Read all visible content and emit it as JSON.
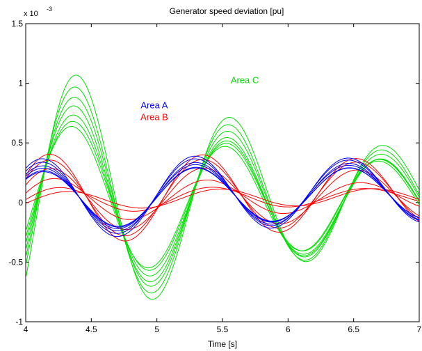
{
  "chart_data": {
    "type": "line",
    "title": "Generator speed deviation [pu]",
    "xlabel": "Time [s]",
    "ylabel": "",
    "xlim": [
      4,
      7
    ],
    "ylim": [
      -1,
      1.5
    ],
    "y_exponent_label": "x 10^-3",
    "y_multiplier_base": "x 10",
    "y_multiplier_exp": "-3",
    "xticks": [
      4,
      4.5,
      5,
      5.5,
      6,
      6.5,
      7
    ],
    "xtick_labels": [
      "4",
      "4.5",
      "5",
      "5.5",
      "6",
      "6.5",
      "7"
    ],
    "yticks": [
      -1,
      -0.5,
      0,
      0.5,
      1,
      1.5
    ],
    "ytick_labels": [
      "-1",
      "-0.5",
      "0",
      "0.5",
      "1",
      "1.5"
    ],
    "grid": false,
    "annotations": [
      {
        "text": "Area C",
        "x": 5.67,
        "y": 1.0,
        "color": "#00e000"
      },
      {
        "text": "Area A",
        "x": 4.98,
        "y": 0.79,
        "color": "#0000ff"
      },
      {
        "text": "Area B",
        "x": 4.98,
        "y": 0.69,
        "color": "#ff0000"
      }
    ],
    "groups": [
      {
        "name": "Area C",
        "color": "#00e000",
        "series": [
          {
            "x0": 4.0,
            "y0": -0.1,
            "amp": 1.22,
            "decay": 0.38,
            "period": 1.17,
            "phase": -0.55,
            "offset": 0.05
          },
          {
            "x0": 4.0,
            "y0": -0.3,
            "amp": 1.1,
            "decay": 0.36,
            "period": 1.17,
            "phase": -0.5,
            "offset": 0.03
          },
          {
            "x0": 4.0,
            "y0": -0.5,
            "amp": 1.0,
            "decay": 0.35,
            "period": 1.17,
            "phase": -0.48,
            "offset": 0.02
          },
          {
            "x0": 4.0,
            "y0": -0.65,
            "amp": 0.92,
            "decay": 0.34,
            "period": 1.17,
            "phase": -0.45,
            "offset": 0.0
          },
          {
            "x0": 4.0,
            "y0": -0.75,
            "amp": 0.82,
            "decay": 0.3,
            "period": 1.17,
            "phase": -0.43,
            "offset": 0.0
          },
          {
            "x0": 4.0,
            "y0": -0.6,
            "amp": 0.75,
            "decay": 0.28,
            "period": 1.17,
            "phase": -0.4,
            "offset": 0.01
          },
          {
            "x0": 4.0,
            "y0": -0.4,
            "amp": 0.7,
            "decay": 0.26,
            "period": 1.17,
            "phase": -0.35,
            "offset": 0.0
          }
        ]
      },
      {
        "name": "Area A",
        "color": "#0000ff",
        "series": [
          {
            "amp": 0.36,
            "decay": 0.1,
            "period": 1.17,
            "phase": 0.92,
            "offset": 0.1
          },
          {
            "amp": 0.33,
            "decay": 0.09,
            "period": 1.17,
            "phase": 0.92,
            "offset": 0.1
          },
          {
            "amp": 0.3,
            "decay": 0.08,
            "period": 1.17,
            "phase": 0.9,
            "offset": 0.09
          },
          {
            "amp": 0.28,
            "decay": 0.08,
            "period": 1.17,
            "phase": 0.9,
            "offset": 0.09
          },
          {
            "amp": 0.26,
            "decay": 0.07,
            "period": 1.17,
            "phase": 0.88,
            "offset": 0.08
          },
          {
            "amp": 0.25,
            "decay": 0.06,
            "period": 1.17,
            "phase": 0.88,
            "offset": 0.08
          }
        ]
      },
      {
        "name": "Area B",
        "color": "#ff0000",
        "series": [
          {
            "amp": 0.4,
            "decay": 0.12,
            "period": 1.17,
            "phase": 0.6,
            "offset": 0.08
          },
          {
            "amp": 0.35,
            "decay": 0.11,
            "period": 1.17,
            "phase": 0.6,
            "offset": 0.08
          },
          {
            "amp": 0.28,
            "decay": 0.1,
            "period": 1.17,
            "phase": 0.55,
            "offset": 0.06
          },
          {
            "amp": 0.2,
            "decay": 0.2,
            "period": 1.17,
            "phase": 0.4,
            "offset": 0.05
          },
          {
            "amp": 0.12,
            "decay": 0.2,
            "period": 1.17,
            "phase": 0.2,
            "offset": 0.05
          },
          {
            "amp": 0.08,
            "decay": 0.05,
            "period": 1.17,
            "phase": -0.1,
            "offset": 0.05
          }
        ]
      }
    ]
  }
}
